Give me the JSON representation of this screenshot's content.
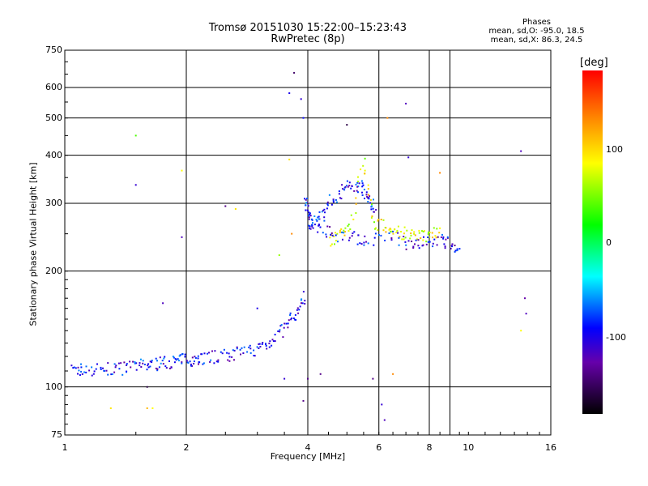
{
  "header": {
    "title_line1": "Tromsø 20151030 15:22:00–15:23:43",
    "title_line2": "RwPretec (8p)"
  },
  "phases": {
    "heading": "Phases",
    "o_mode": "mean, sd,O: -95.0, 18.5",
    "x_mode": "mean, sd,X:  86.3, 24.5"
  },
  "colorbar": {
    "unit": "[deg]",
    "ticks": [
      {
        "value": 100,
        "label": "100"
      },
      {
        "value": 0,
        "label": "0"
      },
      {
        "value": -100,
        "label": "-100"
      }
    ],
    "range": [
      -180,
      180
    ],
    "colors": [
      "#ff0000",
      "#ff8800",
      "#ffff00",
      "#00ff00",
      "#00ffff",
      "#0000ff",
      "#6600aa",
      "#000000"
    ]
  },
  "chart_data": {
    "type": "scatter",
    "title": "Tromsø 20151030 15:22:00–15:23:43",
    "subtitle": "RwPretec (8p)",
    "xlabel": "Frequency [MHz]",
    "ylabel": "Stationary phase Virtual Height [km]",
    "xscale": "log",
    "yscale": "log",
    "xlim": [
      1,
      16
    ],
    "ylim": [
      75,
      750
    ],
    "x_ticks": [
      1,
      2,
      4,
      6,
      8,
      10,
      16
    ],
    "y_ticks": [
      75,
      100,
      200,
      300,
      400,
      500,
      600,
      750
    ],
    "x_grid": [
      2,
      4,
      6,
      8,
      9
    ],
    "y_grid": [
      100,
      200,
      300,
      400,
      500,
      600
    ],
    "grid": true,
    "color_variable": "phase [deg]",
    "traces": [
      {
        "name": "lower trace (O)",
        "phase": -95,
        "points": [
          [
            1.05,
            110
          ],
          [
            1.1,
            111
          ],
          [
            1.2,
            111
          ],
          [
            1.3,
            111
          ],
          [
            1.4,
            112
          ],
          [
            1.5,
            113
          ],
          [
            1.6,
            114
          ],
          [
            1.7,
            115
          ],
          [
            1.8,
            116
          ],
          [
            1.9,
            117
          ],
          [
            2.0,
            118
          ],
          [
            2.1,
            118
          ],
          [
            2.2,
            119
          ],
          [
            2.4,
            120
          ],
          [
            2.6,
            121
          ],
          [
            2.8,
            123
          ],
          [
            3.0,
            126
          ],
          [
            3.2,
            130
          ],
          [
            3.4,
            138
          ],
          [
            3.6,
            148
          ],
          [
            3.8,
            158
          ],
          [
            3.95,
            175
          ]
        ]
      },
      {
        "name": "upper trace (O)",
        "phase": -90,
        "points": [
          [
            3.95,
            300
          ],
          [
            4.0,
            290
          ],
          [
            4.05,
            270
          ],
          [
            4.1,
            265
          ],
          [
            4.3,
            272
          ],
          [
            4.5,
            300
          ],
          [
            4.8,
            320
          ],
          [
            5.0,
            330
          ],
          [
            5.3,
            335
          ],
          [
            5.5,
            330
          ],
          [
            5.7,
            300
          ],
          [
            5.9,
            290
          ]
        ]
      },
      {
        "name": "upper trace (X)",
        "phase": 86,
        "points": [
          [
            4.5,
            240
          ],
          [
            4.8,
            250
          ],
          [
            5.1,
            260
          ],
          [
            5.5,
            385
          ],
          [
            5.8,
            270
          ],
          [
            6.2,
            260
          ],
          [
            6.6,
            255
          ],
          [
            7.0,
            250
          ],
          [
            7.5,
            245
          ],
          [
            8.0,
            250
          ],
          [
            8.5,
            255
          ]
        ]
      },
      {
        "name": "high frequency trace",
        "phase": -100,
        "points": [
          [
            4.2,
            260
          ],
          [
            4.6,
            250
          ],
          [
            5.2,
            245
          ],
          [
            5.6,
            240
          ],
          [
            6.5,
            245
          ],
          [
            7.2,
            235
          ],
          [
            7.8,
            240
          ],
          [
            8.5,
            240
          ],
          [
            9.0,
            236
          ],
          [
            9.5,
            232
          ]
        ]
      }
    ],
    "scattered": [
      {
        "x": 3.7,
        "y": 655,
        "phase": -150
      },
      {
        "x": 3.85,
        "y": 560,
        "phase": -110
      },
      {
        "x": 3.6,
        "y": 580,
        "phase": -100
      },
      {
        "x": 3.9,
        "y": 500,
        "phase": -90
      },
      {
        "x": 3.9,
        "y": 92,
        "phase": -140
      },
      {
        "x": 5.0,
        "y": 480,
        "phase": -160
      },
      {
        "x": 6.3,
        "y": 500,
        "phase": 140
      },
      {
        "x": 7.0,
        "y": 545,
        "phase": -120
      },
      {
        "x": 7.1,
        "y": 395,
        "phase": -110
      },
      {
        "x": 13.5,
        "y": 410,
        "phase": -120
      },
      {
        "x": 13.8,
        "y": 170,
        "phase": -130
      },
      {
        "x": 13.9,
        "y": 155,
        "phase": -120
      },
      {
        "x": 13.5,
        "y": 140,
        "phase": 90
      },
      {
        "x": 8.5,
        "y": 360,
        "phase": 140
      },
      {
        "x": 6.1,
        "y": 90,
        "phase": -110
      },
      {
        "x": 6.2,
        "y": 82,
        "phase": -120
      },
      {
        "x": 6.5,
        "y": 108,
        "phase": 140
      },
      {
        "x": 1.5,
        "y": 335,
        "phase": -110
      },
      {
        "x": 1.5,
        "y": 450,
        "phase": 40
      },
      {
        "x": 1.95,
        "y": 365,
        "phase": 90
      },
      {
        "x": 1.95,
        "y": 245,
        "phase": -120
      },
      {
        "x": 2.5,
        "y": 295,
        "phase": -140
      },
      {
        "x": 2.65,
        "y": 290,
        "phase": 100
      },
      {
        "x": 1.75,
        "y": 165,
        "phase": -120
      },
      {
        "x": 1.6,
        "y": 100,
        "phase": -160
      },
      {
        "x": 1.3,
        "y": 88,
        "phase": 100
      },
      {
        "x": 1.6,
        "y": 88,
        "phase": 120
      },
      {
        "x": 1.65,
        "y": 88,
        "phase": 90
      },
      {
        "x": 3.5,
        "y": 105,
        "phase": -110
      },
      {
        "x": 4.0,
        "y": 105,
        "phase": -140
      },
      {
        "x": 4.3,
        "y": 108,
        "phase": -140
      },
      {
        "x": 5.8,
        "y": 105,
        "phase": -140
      },
      {
        "x": 3.0,
        "y": 160,
        "phase": -100
      },
      {
        "x": 3.4,
        "y": 220,
        "phase": 60
      },
      {
        "x": 3.6,
        "y": 390,
        "phase": 100
      },
      {
        "x": 3.65,
        "y": 250,
        "phase": 140
      }
    ]
  }
}
